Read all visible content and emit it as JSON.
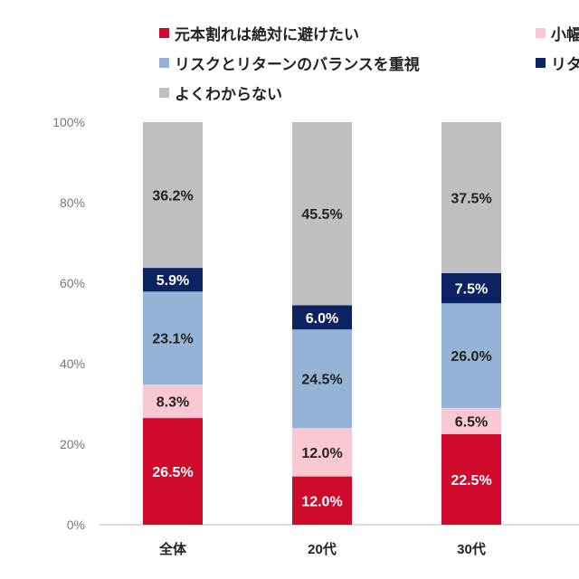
{
  "chart_data": {
    "type": "bar",
    "stacked": true,
    "categories": [
      "全体",
      "20代",
      "30代"
    ],
    "series": [
      {
        "name": "元本割れは絶対に避けたい",
        "color": "#cf0a2c",
        "values": [
          26.5,
          12.0,
          22.5
        ],
        "label_color": "#ffffff"
      },
      {
        "name": "小幅",
        "color": "#f9c8d2",
        "values": [
          8.3,
          12.0,
          6.5
        ],
        "label_color": "#222222"
      },
      {
        "name": "リスクとリターンのバランスを重視",
        "color": "#95b3d7",
        "values": [
          23.1,
          24.5,
          26.0
        ],
        "label_color": "#222222"
      },
      {
        "name": "リタ",
        "color": "#0c2262",
        "values": [
          5.9,
          6.0,
          7.5
        ],
        "label_color": "#ffffff"
      },
      {
        "name": "よくわからない",
        "color": "#bfbfbf",
        "values": [
          36.2,
          45.5,
          37.5
        ],
        "label_color": "#222222"
      }
    ],
    "yticks": [
      "0%",
      "20%",
      "40%",
      "60%",
      "80%",
      "100%"
    ],
    "ylim": [
      0,
      100
    ],
    "grid": false,
    "legend": "top"
  }
}
